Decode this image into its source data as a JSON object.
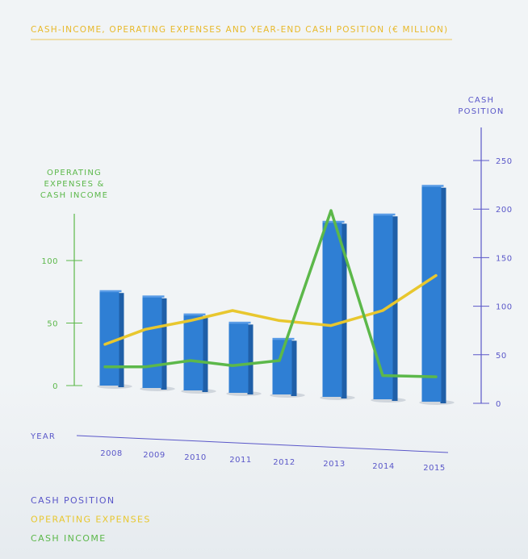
{
  "chart_data": {
    "type": "bar",
    "title": "CASH-INCOME, OPERATING EXPENSES AND YEAR-END CASH POSITION (€ MILLION)",
    "xlabel": "YEAR",
    "ylabel_left": [
      "OPERATING",
      "EXPENSES &",
      "CASH INCOME"
    ],
    "ylabel_right": [
      "CASH",
      "POSITION"
    ],
    "categories": [
      "2008",
      "2009",
      "2010",
      "2011",
      "2012",
      "2013",
      "2014",
      "2015"
    ],
    "ylim_left": [
      0,
      140
    ],
    "ylim_right": [
      0,
      280
    ],
    "yticks_left": [
      0,
      50,
      100
    ],
    "yticks_right": [
      0,
      50,
      100,
      150,
      200,
      250
    ],
    "series": [
      {
        "name": "CASH POSITION",
        "type": "bar",
        "axis": "right",
        "color": "#2f7fd4",
        "values": [
          97,
          94,
          78,
          72,
          57,
          180,
          190,
          222
        ]
      },
      {
        "name": "OPERATING EXPENSES",
        "type": "line",
        "axis": "left",
        "color": "#e8c72e",
        "values": [
          33,
          45,
          52,
          60,
          52,
          48,
          60,
          88
        ]
      },
      {
        "name": "CASH INCOME",
        "type": "line",
        "axis": "left",
        "color": "#5cb84a",
        "values": [
          15,
          15,
          20,
          16,
          20,
          140,
          8,
          7
        ]
      }
    ],
    "legend": [
      "CASH POSITION",
      "OPERATING EXPENSES",
      "CASH INCOME"
    ],
    "legend_position": "bottom-left",
    "colors": {
      "title": "#e8b92a",
      "left_axis": "#5cb84a",
      "right_axis": "#5a57c9",
      "x_axis": "#5a57c9",
      "bar": "#2f7fd4",
      "expenses": "#e8c72e",
      "income": "#5cb84a"
    }
  }
}
